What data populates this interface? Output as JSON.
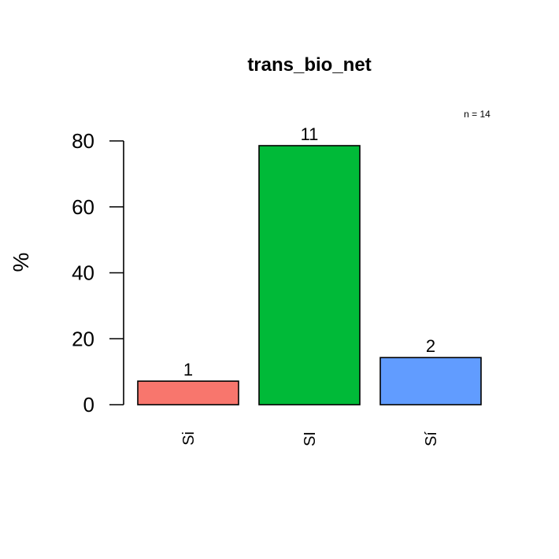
{
  "chart_data": {
    "type": "bar",
    "title": "trans_bio_net",
    "note": "n = 14",
    "ylabel": "%",
    "xlabel": "",
    "ylim": [
      0,
      80
    ],
    "yticks": [
      0,
      20,
      40,
      60,
      80
    ],
    "categories": [
      "Si",
      "SI",
      "Sí"
    ],
    "values": [
      7.14,
      78.57,
      14.29
    ],
    "counts": [
      "1",
      "11",
      "2"
    ],
    "colors": [
      "#F8766D",
      "#00BA38",
      "#619CFF"
    ]
  }
}
